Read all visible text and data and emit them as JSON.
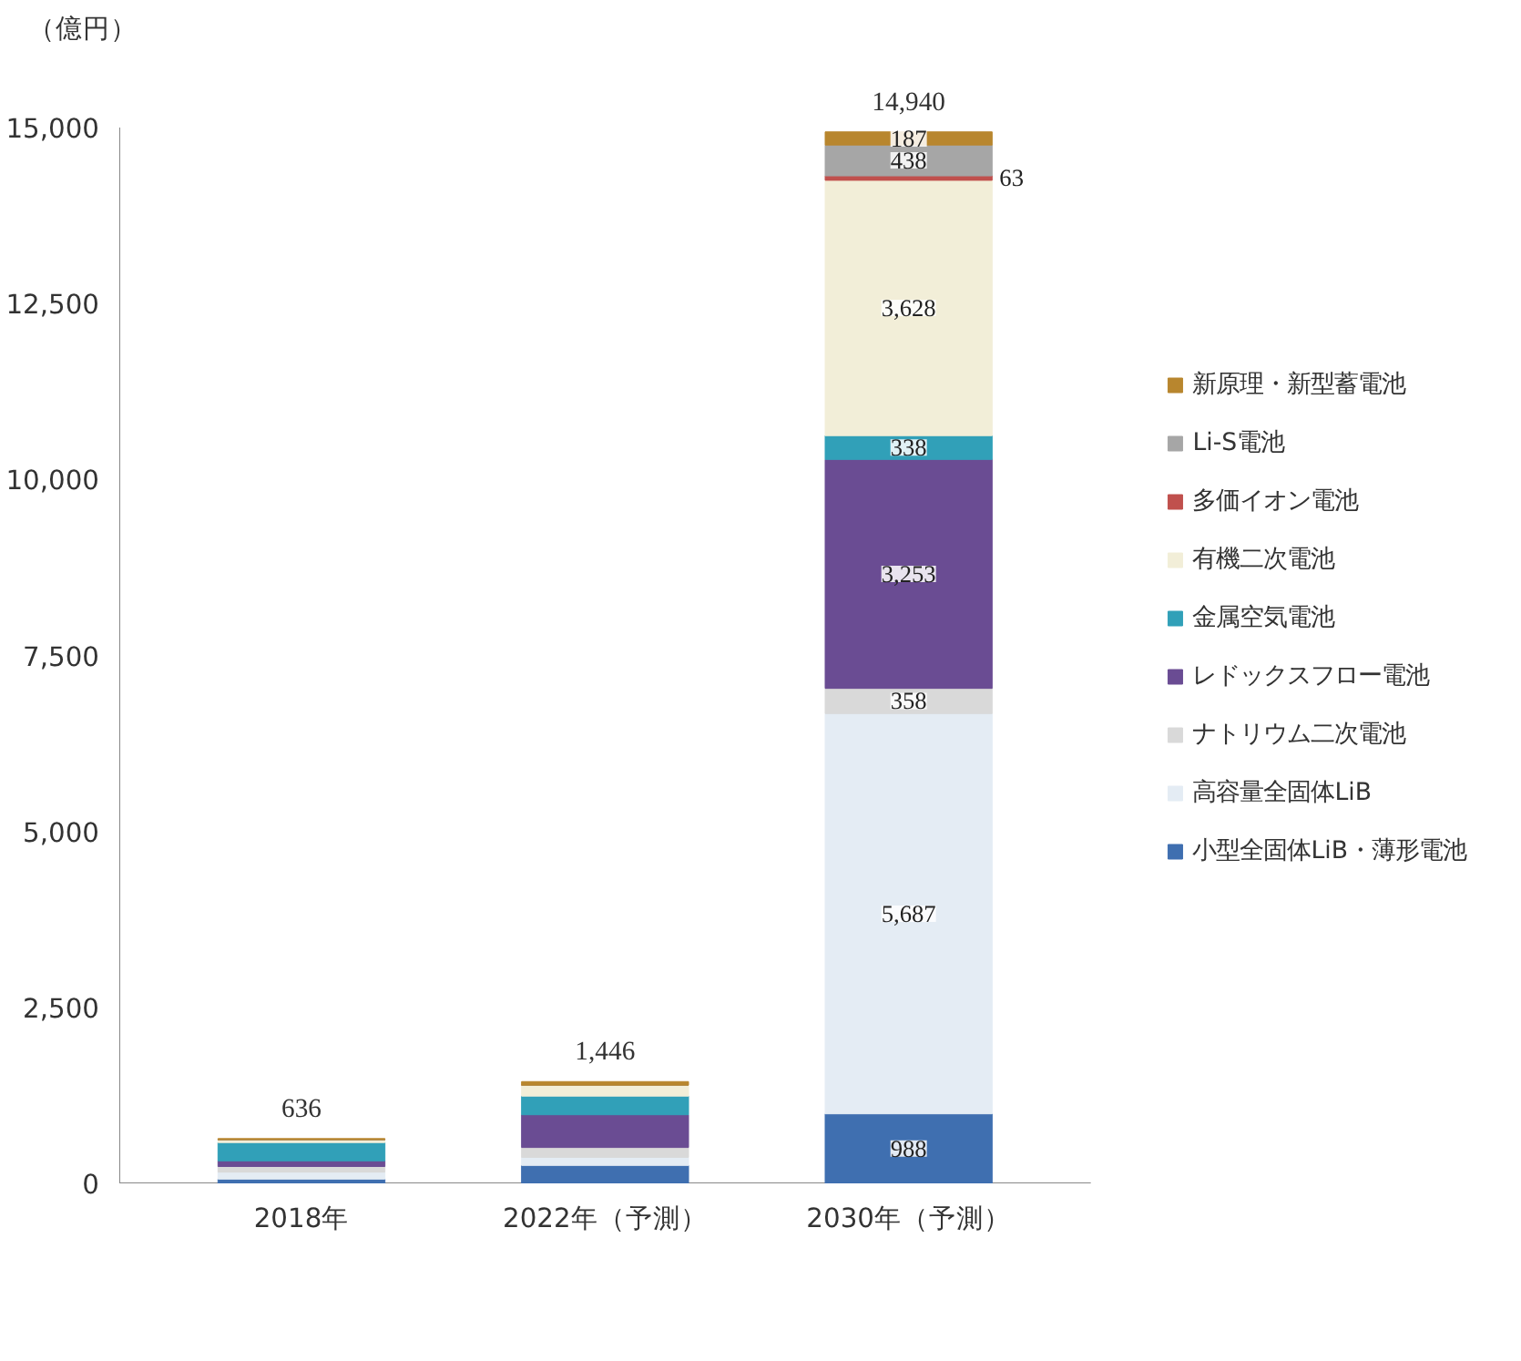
{
  "chart_data": {
    "type": "bar",
    "stacked": true,
    "ylabel": "（億円）",
    "categories": [
      "2018年",
      "2022年（予測）",
      "2030年（予測）"
    ],
    "ylim": [
      0,
      15000
    ],
    "yticks": [
      0,
      {
        "value": 2500,
        "label": "2,500"
      },
      {
        "value": 5000,
        "label": "5,000"
      },
      {
        "value": 7500,
        "label": "7,500"
      },
      {
        "value": 10000,
        "label": "10,000"
      },
      {
        "value": 12500,
        "label": "12,500"
      },
      {
        "value": 15000,
        "label": "15,000"
      }
    ],
    "grid": false,
    "legend": "right",
    "totals": [
      "636",
      "1,446",
      "14,940"
    ],
    "series": [
      {
        "name": "小型全固体LiB・薄形電池",
        "color": "#3f6fb0",
        "values": [
          60,
          255,
          988
        ],
        "value_labels": [
          null,
          null,
          "988"
        ]
      },
      {
        "name": "高容量全固体LiB",
        "color": "#e4ecf4",
        "values": [
          100,
          115,
          5687
        ],
        "value_labels": [
          null,
          null,
          "5,687"
        ]
      },
      {
        "name": "ナトリウム二次電池",
        "color": "#d9d9d9",
        "values": [
          80,
          140,
          358
        ],
        "value_labels": [
          null,
          null,
          "358"
        ]
      },
      {
        "name": "レドックスフロー電池",
        "color": "#6a4c93",
        "values": [
          80,
          465,
          3253
        ],
        "value_labels": [
          null,
          null,
          "3,253"
        ]
      },
      {
        "name": "金属空気電池",
        "color": "#31a0b8",
        "values": [
          260,
          265,
          338
        ],
        "value_labels": [
          null,
          null,
          "338"
        ]
      },
      {
        "name": "有機二次電池",
        "color": "#f2eed8",
        "values": [
          40,
          155,
          3628
        ],
        "value_labels": [
          null,
          null,
          "3,628"
        ]
      },
      {
        "name": "多価イオン電池",
        "color": "#c0504d",
        "values": [
          0,
          0,
          63
        ],
        "value_labels": [
          null,
          null,
          "63"
        ]
      },
      {
        "name": "Li-S電池",
        "color": "#a6a6a6",
        "values": [
          0,
          0,
          438
        ],
        "value_labels": [
          null,
          null,
          "438"
        ]
      },
      {
        "name": "新原理・新型蓄電池",
        "color": "#b8862e",
        "values": [
          16,
          51,
          187
        ],
        "value_labels": [
          null,
          null,
          "187"
        ]
      }
    ]
  }
}
